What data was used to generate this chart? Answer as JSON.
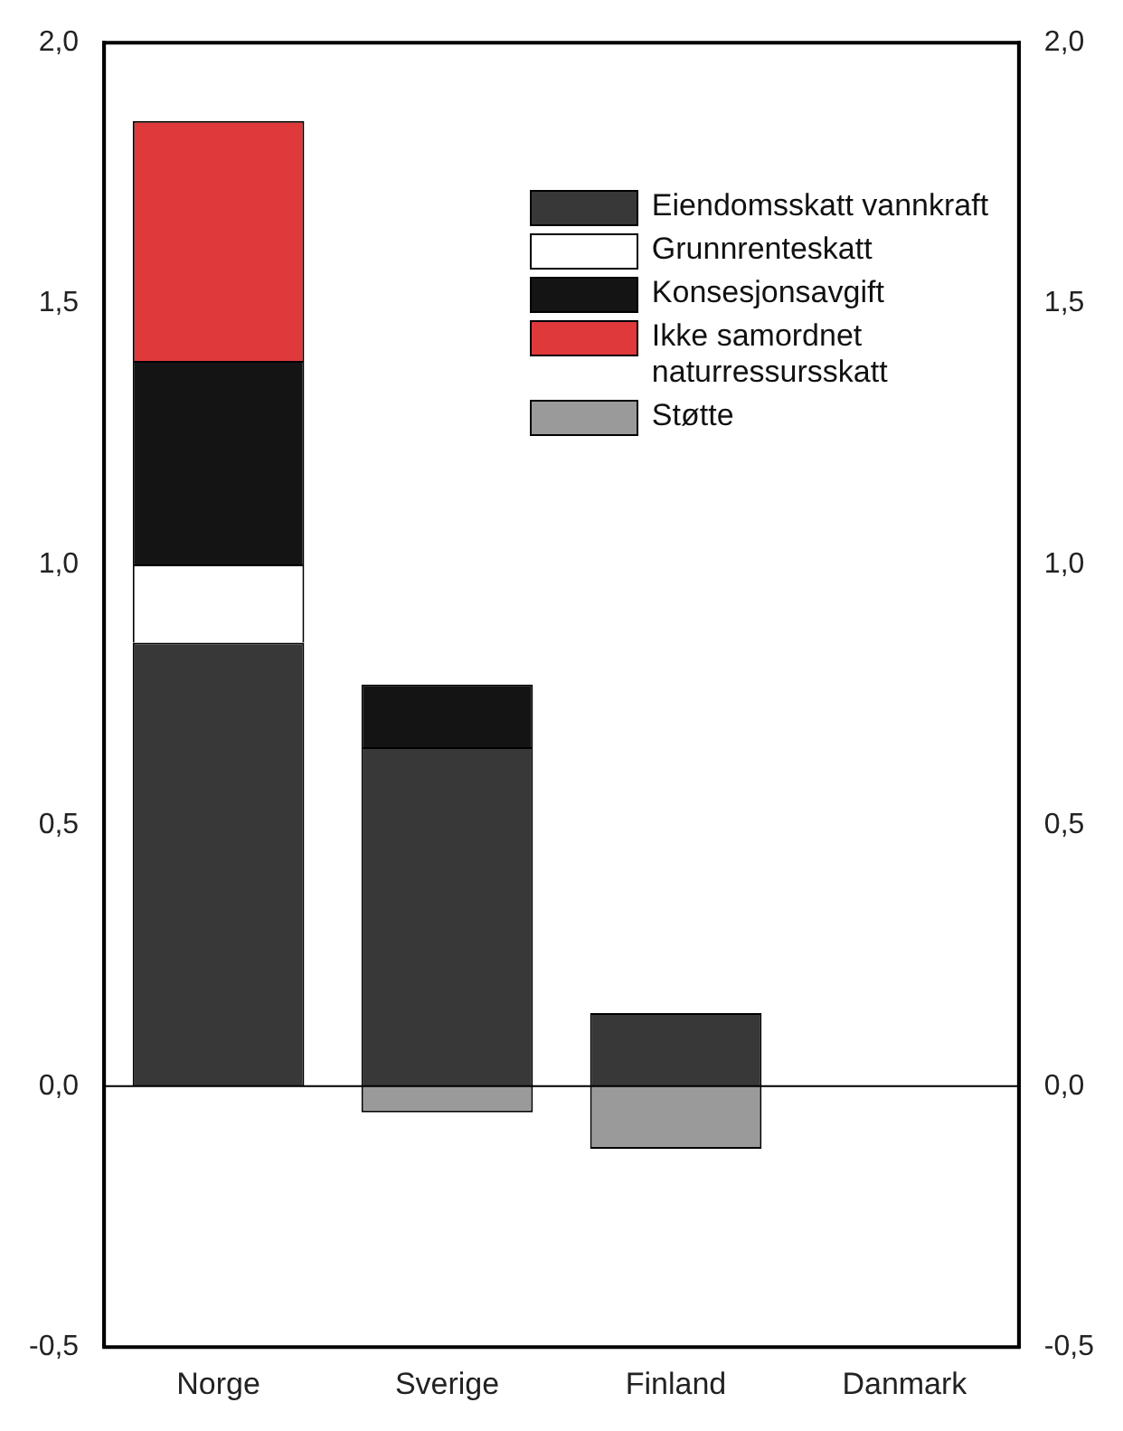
{
  "chart_data": {
    "type": "bar",
    "stacked": true,
    "categories": [
      "Norge",
      "Sverige",
      "Finland",
      "Danmark"
    ],
    "series": [
      {
        "name": "Eiendomsskatt vannkraft",
        "color": "#383838",
        "values": [
          0.85,
          0.65,
          0.14,
          null
        ]
      },
      {
        "name": "Grunnrenteskatt",
        "color": "#ffffff",
        "values": [
          0.15,
          null,
          null,
          null
        ]
      },
      {
        "name": "Konsesjonsavgift",
        "color": "#141414",
        "values": [
          0.39,
          0.12,
          null,
          null
        ]
      },
      {
        "name": "Ikke samordnet naturressursskatt",
        "color": "#e0393b",
        "values": [
          0.46,
          null,
          null,
          null
        ]
      },
      {
        "name": "Støtte",
        "color": "#9a9a9a",
        "values": [
          null,
          -0.05,
          -0.12,
          null
        ]
      }
    ],
    "ylim": [
      -0.5,
      2.0
    ],
    "yticks": [
      {
        "value": -0.5,
        "label": "-0,5"
      },
      {
        "value": 0,
        "label": "0,0"
      },
      {
        "value": 0.5,
        "label": "0,5"
      },
      {
        "value": 1.0,
        "label": "1,0"
      },
      {
        "value": 1.5,
        "label": "1,5"
      },
      {
        "value": 2.0,
        "label": "2,0"
      }
    ],
    "y2lim": [
      -0.5,
      2.0
    ],
    "y2ticks": [
      {
        "value": -0.5,
        "label": "-0,5"
      },
      {
        "value": 0,
        "label": "0,0"
      },
      {
        "value": 0.5,
        "label": "0,5"
      },
      {
        "value": 1.0,
        "label": "1,0"
      },
      {
        "value": 1.5,
        "label": "1,5"
      },
      {
        "value": 2.0,
        "label": "2,0"
      }
    ],
    "ref_lines": [
      {
        "axis": "y",
        "value": 0,
        "color": "#000000"
      }
    ],
    "grid": false,
    "legend": "top right"
  }
}
